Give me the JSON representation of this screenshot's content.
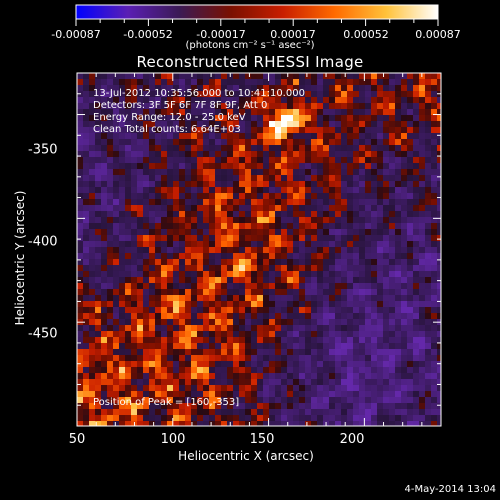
{
  "colorbar": {
    "tick_labels": [
      "-0.00087",
      "-0.00052",
      "-0.00017",
      "0.00017",
      "0.00052",
      "0.00087"
    ],
    "unit_label": "(photons cm⁻² s⁻¹ asec⁻²)",
    "colormap": [
      "#0000ff",
      "#5a1fb4",
      "#3b1a55",
      "#7a1000",
      "#c81e00",
      "#ff6a00",
      "#ffc23a",
      "#ffffff"
    ]
  },
  "image": {
    "title": "Reconstructed RHESSI Image",
    "annotations": [
      "13-Jul-2012 10:35:56.000 to 10:41:10.000",
      "Detectors: 3F 5F 6F 7F 8F 9F, Att 0",
      "Energy Range: 12.0 - 25.0 keV",
      "Clean    Total counts: 6.64E+03"
    ],
    "peak_label": "Position of Peak = [160,-353]",
    "peak": {
      "x": 160,
      "y": -353
    }
  },
  "axes": {
    "xlabel": "Heliocentric X (arcsec)",
    "ylabel": "Heliocentric Y (arcsec)",
    "xlim": [
      50,
      240
    ],
    "ylim": [
      -500,
      -330
    ],
    "x_ticks": [
      "50",
      "100",
      "150",
      "200"
    ],
    "y_ticks": [
      "-350",
      "-400",
      "-450"
    ]
  },
  "footer": {
    "date": "4-May-2014 13:04"
  }
}
